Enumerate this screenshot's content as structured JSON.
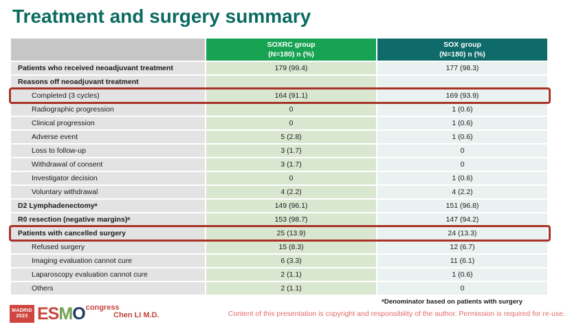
{
  "slide": {
    "title": "Treatment and surgery summary",
    "footnote": "ᵃDenominator based on patients with surgery",
    "copyright": "Content of this presentation is copyright and responsibility of the author. Permission is required for re-use.",
    "presenter": "Chen LI M.D."
  },
  "logo": {
    "city": "MADRID",
    "year": "2023",
    "esmo_red": "ES",
    "esmo_green": "M",
    "esmo_dark": "O",
    "congress": "congress"
  },
  "colors": {
    "title_teal": "#0a6a60",
    "soxrc_header_green": "#17a352",
    "sox_header_teal": "#0f6a6a",
    "soxrc_cell_green": "#d9e7d1",
    "sox_cell_blue": "#e9f2f0",
    "label_cell_gray": "#e3e3e3",
    "highlight_red": "#a93226",
    "footer_red": "#c0453e"
  },
  "table": {
    "header": {
      "blank": "",
      "soxrc": "SOXRC group\n(N=180) n (%)",
      "sox": "SOX group\n(N=180) n (%)"
    },
    "rows": [
      {
        "label": "Patients who received neoadjuvant treatment",
        "soxrc": "179 (99.4)",
        "sox": "177 (98.3)",
        "bold": true,
        "indent": false,
        "highlight": false
      },
      {
        "label": "Reasons off neoadjuvant treatment",
        "soxrc": "",
        "sox": "",
        "bold": true,
        "indent": false,
        "highlight": false
      },
      {
        "label": "Completed (3 cycles)",
        "soxrc": "164 (91.1)",
        "sox": "169 (93.9)",
        "bold": false,
        "indent": true,
        "highlight": true
      },
      {
        "label": "Radiographic progression",
        "soxrc": "0",
        "sox": "1 (0.6)",
        "bold": false,
        "indent": true,
        "highlight": false
      },
      {
        "label": "Clinical progression",
        "soxrc": "0",
        "sox": "1 (0.6)",
        "bold": false,
        "indent": true,
        "highlight": false
      },
      {
        "label": "Adverse event",
        "soxrc": "5 (2.8)",
        "sox": "1 (0.6)",
        "bold": false,
        "indent": true,
        "highlight": false
      },
      {
        "label": "Loss to follow-up",
        "soxrc": "3 (1.7)",
        "sox": "0",
        "bold": false,
        "indent": true,
        "highlight": false
      },
      {
        "label": "Withdrawal of consent",
        "soxrc": "3 (1.7)",
        "sox": "0",
        "bold": false,
        "indent": true,
        "highlight": false
      },
      {
        "label": "Investigator decision",
        "soxrc": "0",
        "sox": "1 (0.6)",
        "bold": false,
        "indent": true,
        "highlight": false
      },
      {
        "label": "Voluntary withdrawal",
        "soxrc": "4 (2.2)",
        "sox": "4 (2.2)",
        "bold": false,
        "indent": true,
        "highlight": false
      },
      {
        "label": "D2 Lymphadenectomyᵃ",
        "soxrc": "149 (96.1)",
        "sox": "151 (96.8)",
        "bold": true,
        "indent": false,
        "highlight": false
      },
      {
        "label": "R0 resection (negative margins)ᵃ",
        "soxrc": "153 (98.7)",
        "sox": "147 (94.2)",
        "bold": true,
        "indent": false,
        "highlight": false
      },
      {
        "label": "Patients with cancelled surgery",
        "soxrc": "25 (13.9)",
        "sox": "24 (13.3)",
        "bold": true,
        "indent": false,
        "highlight": true
      },
      {
        "label": "Refused surgery",
        "soxrc": "15 (8.3)",
        "sox": "12 (6.7)",
        "bold": false,
        "indent": true,
        "highlight": false
      },
      {
        "label": "Imaging evaluation cannot cure",
        "soxrc": "6 (3.3)",
        "sox": "11 (6.1)",
        "bold": false,
        "indent": true,
        "highlight": false
      },
      {
        "label": "Laparoscopy evaluation cannot cure",
        "soxrc": "2 (1.1)",
        "sox": "1 (0.6)",
        "bold": false,
        "indent": true,
        "highlight": false
      },
      {
        "label": "Others",
        "soxrc": "2 (1.1)",
        "sox": "0",
        "bold": false,
        "indent": true,
        "highlight": false
      }
    ]
  }
}
